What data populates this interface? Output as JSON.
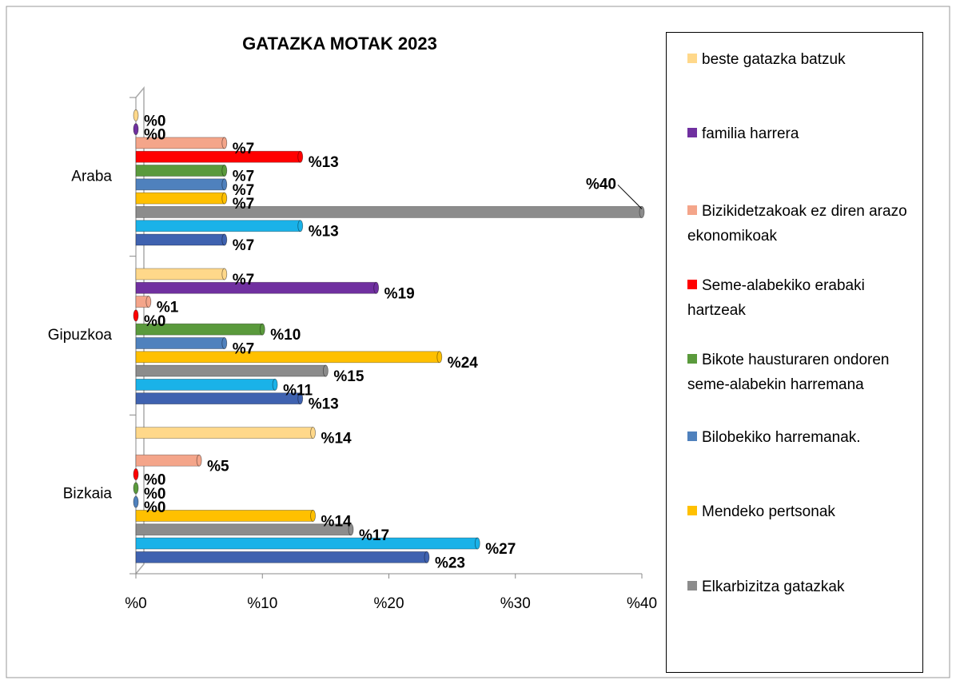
{
  "chart_data": {
    "type": "bar",
    "orientation": "horizontal",
    "title": "GATAZKA MOTAK 2023",
    "categories": [
      "Bizkaia",
      "Gipuzkoa",
      "Araba"
    ],
    "xlim": [
      0,
      40
    ],
    "xticks": [
      {
        "value": 0,
        "label": "%0"
      },
      {
        "value": 10,
        "label": "%10"
      },
      {
        "value": 20,
        "label": "%20"
      },
      {
        "value": 30,
        "label": "%30"
      },
      {
        "value": 40,
        "label": "%40"
      }
    ],
    "series": [
      {
        "color": "#3f62b0",
        "values": [
          23,
          13,
          7
        ],
        "value_labels": [
          "%23",
          "%13",
          "%7"
        ]
      },
      {
        "color": "#1ab2e8",
        "values": [
          27,
          11,
          13
        ],
        "value_labels": [
          "%27",
          "%11",
          "%13"
        ]
      },
      {
        "name": "Elkarbizitza gatazkak",
        "color": "#8c8c8c",
        "values": [
          17,
          15,
          40
        ],
        "value_labels": [
          "%17",
          "%15",
          "%40"
        ]
      },
      {
        "name": "Mendeko pertsonak",
        "color": "#ffc000",
        "values": [
          14,
          24,
          7
        ],
        "value_labels": [
          "%14",
          "%24",
          "%7"
        ]
      },
      {
        "name": "Bilobekiko harremanak.",
        "color": "#4f81bd",
        "values": [
          0,
          7,
          7
        ],
        "value_labels": [
          "%0",
          "%7",
          "%7"
        ]
      },
      {
        "name": "Bikote hausturaren ondoren seme-alabekin harremana",
        "color": "#5a9a3c",
        "values": [
          0,
          10,
          7
        ],
        "value_labels": [
          "%0",
          "%10",
          "%7"
        ]
      },
      {
        "name": "Seme-alabekiko erabaki hartzeak",
        "color": "#ff0000",
        "values": [
          0,
          0,
          13
        ],
        "value_labels": [
          "%0",
          "%0",
          "%13"
        ]
      },
      {
        "name": "Bizikidetzakoak ez diren arazo ekonomikoak",
        "color": "#f4a58a",
        "values": [
          5,
          1,
          7
        ],
        "value_labels": [
          "%5",
          "%1",
          "%7"
        ]
      },
      {
        "name": "familia harrera",
        "color": "#7030a0",
        "values": [
          null,
          19,
          0
        ],
        "value_labels": [
          null,
          "%19",
          "%0"
        ]
      },
      {
        "name": "beste gatazka batzuk",
        "color": "#ffd88a",
        "values": [
          14,
          7,
          0
        ],
        "value_labels": [
          "%14",
          "%7",
          "%0"
        ]
      }
    ]
  }
}
